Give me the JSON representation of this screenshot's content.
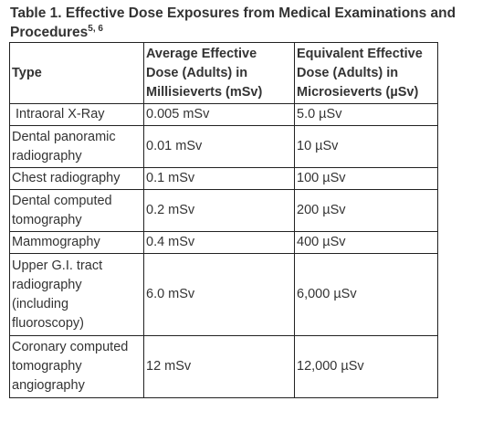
{
  "caption": {
    "title": "Table 1. Effective Dose Exposures from Medical Examinations and Procedures",
    "superscript": "5, 6"
  },
  "headers": [
    "Type",
    "Average Effective Dose (Adults) in Millisieverts (mSv)",
    "Equivalent Effective Dose (Adults) in Microsieverts (µSv)"
  ],
  "rows": [
    [
      "Intraoral X-Ray",
      "0.005 mSv",
      "5.0 µSv"
    ],
    [
      "Dental panoramic radiography",
      "0.01 mSv",
      "10 µSv"
    ],
    [
      "Chest radiography",
      "0.1 mSv",
      "100 µSv"
    ],
    [
      "Dental computed tomography",
      "0.2 mSv",
      "200 µSv"
    ],
    [
      "Mammography",
      "0.4 mSv",
      "400 µSv"
    ],
    [
      "Upper G.I. tract radiography (including fluoroscopy)",
      "6.0 mSv",
      "6,000 µSv"
    ],
    [
      "Coronary computed tomography angiography",
      "12 mSv",
      "12,000 µSv"
    ]
  ]
}
